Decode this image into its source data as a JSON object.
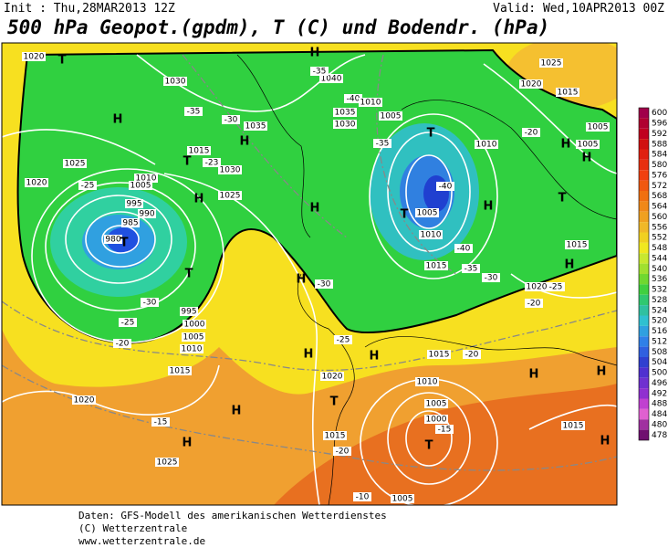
{
  "header": {
    "init": "Init : Thu,28MAR2013 12Z",
    "valid": "Valid: Wed,10APR2013 00Z",
    "title": "500 hPa Geopot.(gpdm), T (C) und Bodendr. (hPa)"
  },
  "legend": {
    "labels": [
      "600",
      "596",
      "592",
      "588",
      "584",
      "580",
      "576",
      "572",
      "568",
      "564",
      "560",
      "556",
      "552",
      "548",
      "544",
      "540",
      "536",
      "532",
      "528",
      "524",
      "520",
      "516",
      "512",
      "508",
      "504",
      "500",
      "496",
      "492",
      "488",
      "484",
      "480",
      "478"
    ]
  },
  "map": {
    "labels": [
      "H",
      "T",
      "1020",
      "1030",
      "-35",
      "-30",
      "1035",
      "H",
      "1015",
      "T",
      "-23",
      "1030",
      "1025",
      "1020",
      "1010",
      "1005",
      "-25",
      "995",
      "990",
      "985",
      "980",
      "T",
      "1025",
      "H",
      "T",
      "995",
      "1000",
      "1005",
      "-30",
      "-25",
      "-20",
      "1010",
      "1015",
      "1020",
      "H",
      "1025",
      "-15",
      "H",
      "H",
      "1040",
      "-35",
      "-40",
      "1035",
      "1030",
      "1010",
      "1005",
      "T",
      "-35",
      "-40",
      "T",
      "1005",
      "1010",
      "H",
      "H",
      "-40",
      "1015",
      "-35",
      "-30",
      "H",
      "-30",
      "-25",
      "H",
      "T",
      "1010",
      "1020",
      "1025",
      "1015",
      "1005",
      "1005",
      "H",
      "-20",
      "1015",
      "H",
      "1020",
      "-25",
      "-20",
      "1015",
      "-20",
      "H",
      "1020",
      "H",
      "T",
      "1010",
      "1005",
      "1000",
      "-15",
      "T",
      "1015",
      "-20",
      "1015",
      "H",
      "H",
      "H",
      "1005",
      "-10"
    ]
  },
  "footer": {
    "lines": [
      "Daten: GFS-Modell des amerikanischen Wetterdienstes",
      "(C) Wetterzentrale",
      "www.wetterzentrale.de"
    ]
  }
}
